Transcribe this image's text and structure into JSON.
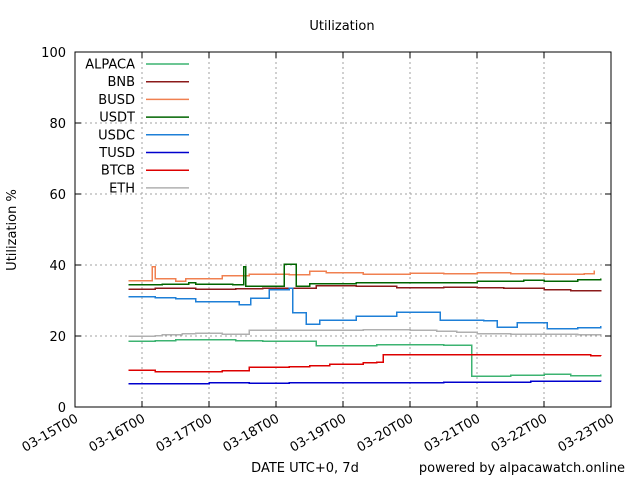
{
  "chart_data": {
    "type": "line",
    "title": "Utilization",
    "xlabel": "DATE UTC+0, 7d",
    "ylabel": "Utilization %",
    "footer": "powered by alpacawatch.online",
    "ylim": [
      0,
      100
    ],
    "yticks": [
      0,
      20,
      40,
      60,
      80,
      100
    ],
    "xlim": [
      0,
      8
    ],
    "xticks": [
      {
        "x": 0,
        "label": "03-15T00"
      },
      {
        "x": 1,
        "label": "03-16T00"
      },
      {
        "x": 2,
        "label": "03-17T00"
      },
      {
        "x": 3,
        "label": "03-18T00"
      },
      {
        "x": 4,
        "label": "03-19T00"
      },
      {
        "x": 5,
        "label": "03-20T00"
      },
      {
        "x": 6,
        "label": "03-21T00"
      },
      {
        "x": 7,
        "label": "03-22T00"
      },
      {
        "x": 8,
        "label": "03-23T00"
      }
    ],
    "grid": true,
    "legend_position": "top-left",
    "series": [
      {
        "name": "ALPACA",
        "color": "#3cb371",
        "step": true,
        "points": [
          [
            0.8,
            18.5
          ],
          [
            1.2,
            18.7
          ],
          [
            1.5,
            19
          ],
          [
            2.0,
            18.9
          ],
          [
            2.4,
            18.7
          ],
          [
            2.8,
            18.5
          ],
          [
            3.1,
            18.6
          ],
          [
            3.6,
            17.3
          ],
          [
            4.5,
            17.5
          ],
          [
            5.5,
            17.4
          ],
          [
            5.92,
            8.7
          ],
          [
            6.2,
            8.7
          ],
          [
            6.5,
            9.0
          ],
          [
            7.0,
            9.2
          ],
          [
            7.4,
            8.8
          ],
          [
            7.85,
            9.1
          ]
        ]
      },
      {
        "name": "BNB",
        "color": "#8b1a1a",
        "step": true,
        "points": [
          [
            0.8,
            33.2
          ],
          [
            1.2,
            33.4
          ],
          [
            1.8,
            33.2
          ],
          [
            2.4,
            33.3
          ],
          [
            2.8,
            33.5
          ],
          [
            3.2,
            33.5
          ],
          [
            3.6,
            34.2
          ],
          [
            4.2,
            34.0
          ],
          [
            4.8,
            33.6
          ],
          [
            5.5,
            33.8
          ],
          [
            6.0,
            33.6
          ],
          [
            6.4,
            33.4
          ],
          [
            7.0,
            33.0
          ],
          [
            7.4,
            32.8
          ],
          [
            7.85,
            32.5
          ]
        ]
      },
      {
        "name": "BUSD",
        "color": "#f08050",
        "step": true,
        "points": [
          [
            0.8,
            35.6
          ],
          [
            1.1,
            35.6
          ],
          [
            1.15,
            39.5
          ],
          [
            1.2,
            36.2
          ],
          [
            1.5,
            35.5
          ],
          [
            1.65,
            36.2
          ],
          [
            2.2,
            37.0
          ],
          [
            2.6,
            37.4
          ],
          [
            3.2,
            37.3
          ],
          [
            3.5,
            38.3
          ],
          [
            3.75,
            37.8
          ],
          [
            4.3,
            37.4
          ],
          [
            5.0,
            37.7
          ],
          [
            5.5,
            37.6
          ],
          [
            6.0,
            37.8
          ],
          [
            6.5,
            37.6
          ],
          [
            7.0,
            37.4
          ],
          [
            7.6,
            37.6
          ],
          [
            7.75,
            38.4
          ]
        ]
      },
      {
        "name": "USDT",
        "color": "#006400",
        "step": true,
        "points": [
          [
            0.8,
            34.5
          ],
          [
            1.3,
            34.6
          ],
          [
            1.6,
            34.6
          ],
          [
            1.7,
            35.0
          ],
          [
            1.8,
            34.6
          ],
          [
            2.35,
            34.5
          ],
          [
            2.52,
            39.5
          ],
          [
            2.55,
            34.0
          ],
          [
            3.0,
            34.0
          ],
          [
            3.12,
            40.2
          ],
          [
            3.3,
            34.0
          ],
          [
            3.5,
            34.8
          ],
          [
            4.2,
            35.0
          ],
          [
            4.8,
            35.0
          ],
          [
            5.5,
            35.0
          ],
          [
            6.0,
            35.4
          ],
          [
            6.7,
            35.7
          ],
          [
            7.0,
            35.4
          ],
          [
            7.5,
            35.8
          ],
          [
            7.85,
            36.2
          ]
        ]
      },
      {
        "name": "USDC",
        "color": "#1e7fd7",
        "step": true,
        "points": [
          [
            0.8,
            31.0
          ],
          [
            1.2,
            30.8
          ],
          [
            1.5,
            30.5
          ],
          [
            1.8,
            29.6
          ],
          [
            2.2,
            29.6
          ],
          [
            2.45,
            28.8
          ],
          [
            2.62,
            30.7
          ],
          [
            2.9,
            33.0
          ],
          [
            3.2,
            33.4
          ],
          [
            3.25,
            26.5
          ],
          [
            3.45,
            23.3
          ],
          [
            3.65,
            24.5
          ],
          [
            4.2,
            25.6
          ],
          [
            4.8,
            26.7
          ],
          [
            5.3,
            26.7
          ],
          [
            5.45,
            24.4
          ],
          [
            5.9,
            24.4
          ],
          [
            6.1,
            24.3
          ],
          [
            6.3,
            22.5
          ],
          [
            6.6,
            23.8
          ],
          [
            6.95,
            23.8
          ],
          [
            7.05,
            22.0
          ],
          [
            7.5,
            22.4
          ],
          [
            7.85,
            22.8
          ]
        ]
      },
      {
        "name": "TUSD",
        "color": "#0000cd",
        "step": true,
        "points": [
          [
            0.8,
            6.6
          ],
          [
            1.5,
            6.6
          ],
          [
            2.0,
            6.8
          ],
          [
            2.6,
            6.7
          ],
          [
            3.2,
            6.8
          ],
          [
            3.6,
            6.9
          ],
          [
            4.5,
            6.9
          ],
          [
            5.5,
            7.0
          ],
          [
            6.2,
            7.0
          ],
          [
            6.8,
            7.3
          ],
          [
            7.3,
            7.3
          ],
          [
            7.85,
            7.2
          ]
        ]
      },
      {
        "name": "BTCB",
        "color": "#dd0000",
        "step": true,
        "points": [
          [
            0.8,
            10.3
          ],
          [
            1.2,
            10.0
          ],
          [
            2.0,
            10.0
          ],
          [
            2.2,
            10.2
          ],
          [
            2.6,
            11.2
          ],
          [
            3.2,
            11.3
          ],
          [
            3.5,
            11.7
          ],
          [
            3.8,
            12.0
          ],
          [
            4.2,
            12.0
          ],
          [
            4.3,
            12.5
          ],
          [
            4.5,
            12.6
          ],
          [
            4.6,
            14.7
          ],
          [
            5.2,
            14.7
          ],
          [
            6.0,
            14.7
          ],
          [
            7.0,
            14.7
          ],
          [
            7.7,
            14.5
          ],
          [
            7.85,
            14.4
          ]
        ]
      },
      {
        "name": "ETH",
        "color": "#b0b0b0",
        "step": true,
        "points": [
          [
            0.8,
            20.0
          ],
          [
            1.2,
            20.1
          ],
          [
            1.3,
            20.4
          ],
          [
            1.6,
            20.6
          ],
          [
            1.8,
            20.8
          ],
          [
            2.2,
            20.5
          ],
          [
            2.6,
            21.7
          ],
          [
            3.2,
            21.7
          ],
          [
            3.7,
            21.6
          ],
          [
            4.3,
            21.8
          ],
          [
            5.0,
            21.7
          ],
          [
            5.4,
            21.4
          ],
          [
            5.7,
            21.0
          ],
          [
            6.0,
            20.7
          ],
          [
            6.5,
            20.5
          ],
          [
            7.0,
            20.5
          ],
          [
            7.5,
            20.4
          ],
          [
            7.85,
            20.3
          ]
        ]
      }
    ]
  }
}
